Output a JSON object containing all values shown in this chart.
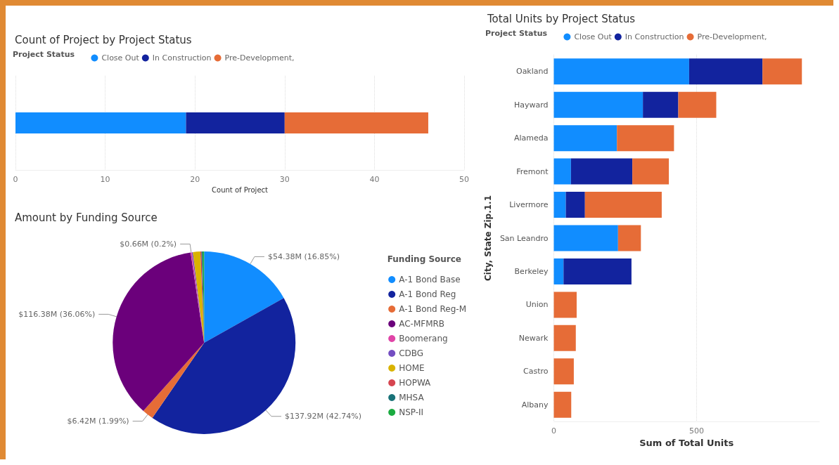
{
  "chart_data": [
    {
      "type": "bar",
      "title": "Count of Project by Project Status",
      "legend_title": "Project Status",
      "orientation": "horizontal",
      "stacked": true,
      "categories": [
        null
      ],
      "xlabel": "Count of Project",
      "xlim": [
        0,
        50
      ],
      "xticks": [
        0,
        10,
        20,
        30,
        40,
        50
      ],
      "grid": "x",
      "legend": "top left",
      "series": [
        {
          "name": "Close Out",
          "color": "#118dff",
          "values": [
            19
          ]
        },
        {
          "name": "In Construction",
          "color": "#12239e",
          "values": [
            11
          ]
        },
        {
          "name": "Pre-Development,",
          "color": "#e66c37",
          "values": [
            16
          ]
        }
      ]
    },
    {
      "type": "bar",
      "title": "Total Units by Project Status",
      "legend_title": "Project Status",
      "orientation": "horizontal",
      "stacked": true,
      "categories": [
        "Oakland",
        "Hayward",
        "Alameda",
        "Fremont",
        "Livermore",
        "San Leandro",
        "Berkeley",
        "Union",
        "Newark",
        "Castro",
        "Albany"
      ],
      "xlabel": "Sum of Total Units",
      "ylabel": "City, State Zip.1.1",
      "xlim": [
        0,
        930
      ],
      "xticks": [
        0,
        500
      ],
      "grid": "x",
      "legend": "top left",
      "series": [
        {
          "name": "Close Out",
          "color": "#118dff",
          "values": [
            474,
            312,
            221,
            60,
            42,
            225,
            34,
            null,
            null,
            null,
            null
          ]
        },
        {
          "name": "In Construction",
          "color": "#12239e",
          "values": [
            257,
            124,
            null,
            215,
            67,
            null,
            238,
            null,
            null,
            null,
            null
          ]
        },
        {
          "name": "Pre-Development,",
          "color": "#e66c37",
          "values": [
            138,
            133,
            200,
            128,
            269,
            80,
            null,
            80,
            77,
            70,
            61
          ]
        }
      ]
    },
    {
      "type": "pie",
      "title": "Amount by Funding Source",
      "legend_title": "Funding Source",
      "legend": "right",
      "categories": [
        "A-1 Bond Base",
        "A-1 Bond Reg",
        "A-1 Bond Reg-M",
        "AC-MFMRB",
        "Boomerang",
        "CDBG",
        "HOME",
        "HOPWA",
        "MHSA",
        "NSP-II"
      ],
      "values": [
        16.85,
        42.74,
        1.99,
        36.06,
        0.2,
        0.2,
        1.3,
        0.2,
        0.2,
        0.26
      ],
      "value_labels": [
        "$54.38M (16.85%)",
        "$137.92M (42.74%)",
        "$6.42M (1.99%)",
        "$116.38M (36.06%)",
        "$0.66M (0.2%)",
        null,
        null,
        null,
        null,
        null
      ],
      "colors": [
        "#118dff",
        "#12239e",
        "#e66c37",
        "#6b007b",
        "#e044a7",
        "#744ec2",
        "#d9b300",
        "#d64550",
        "#197278",
        "#1aab40"
      ]
    }
  ]
}
